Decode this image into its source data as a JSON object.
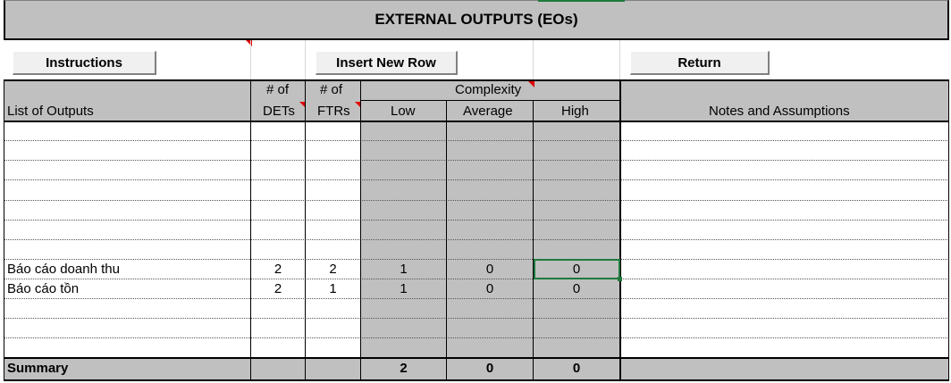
{
  "title": "EXTERNAL OUTPUTS (EOs)",
  "buttons": {
    "instructions": "Instructions",
    "insert_row": "Insert New Row",
    "return": "Return"
  },
  "headers": {
    "list_of_outputs": "List of Outputs",
    "dets_top": "# of",
    "dets_bottom": "DETs",
    "ftrs_top": "# of",
    "ftrs_bottom": "FTRs",
    "complexity": "Complexity",
    "low": "Low",
    "average": "Average",
    "high": "High",
    "notes": "Notes and Assumptions"
  },
  "rows": [
    {
      "name": "Báo cáo doanh thu",
      "dets": "2",
      "ftrs": "2",
      "low": "1",
      "average": "0",
      "high": "0"
    },
    {
      "name": "Báo cáo tồn",
      "dets": "2",
      "ftrs": "1",
      "low": "1",
      "average": "0",
      "high": "0"
    }
  ],
  "summary": {
    "label": "Summary",
    "low": "2",
    "average": "0",
    "high": "0"
  },
  "colors": {
    "header_gray": "#c0c0c0",
    "selection_green": "#1e7a3c",
    "comment_red": "#e00000"
  }
}
